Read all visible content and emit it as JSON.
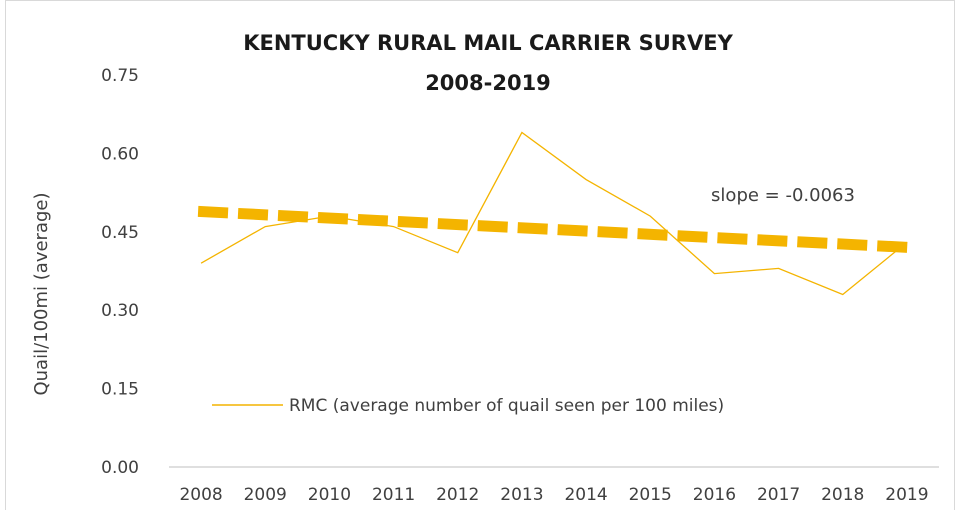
{
  "chart_data": {
    "type": "line",
    "title_lines": [
      "KENTUCKY RURAL MAIL CARRIER SURVEY",
      "2008-2019"
    ],
    "xlabel": "",
    "ylabel": "Quail/100mi (average)",
    "ylim": [
      0,
      0.75
    ],
    "y_ticks": [
      "0.00",
      "0.15",
      "0.30",
      "0.45",
      "0.60",
      "0.75"
    ],
    "categories": [
      "2008",
      "2009",
      "2010",
      "2011",
      "2012",
      "2013",
      "2014",
      "2015",
      "2016",
      "2017",
      "2018",
      "2019"
    ],
    "series": [
      {
        "name": "RMC (average number of quail seen per 100 miles)",
        "values": [
          0.39,
          0.46,
          0.48,
          0.46,
          0.41,
          0.64,
          0.55,
          0.48,
          0.37,
          0.38,
          0.33,
          0.43
        ]
      }
    ],
    "trendline": {
      "start": 0.489,
      "end": 0.42,
      "label": "slope = -0.0063"
    },
    "legend_position": "bottom-center",
    "grid": false,
    "colors": {
      "series": "#f4b400",
      "trendline": "#f4b400",
      "axis": "#bfbfbf"
    }
  }
}
